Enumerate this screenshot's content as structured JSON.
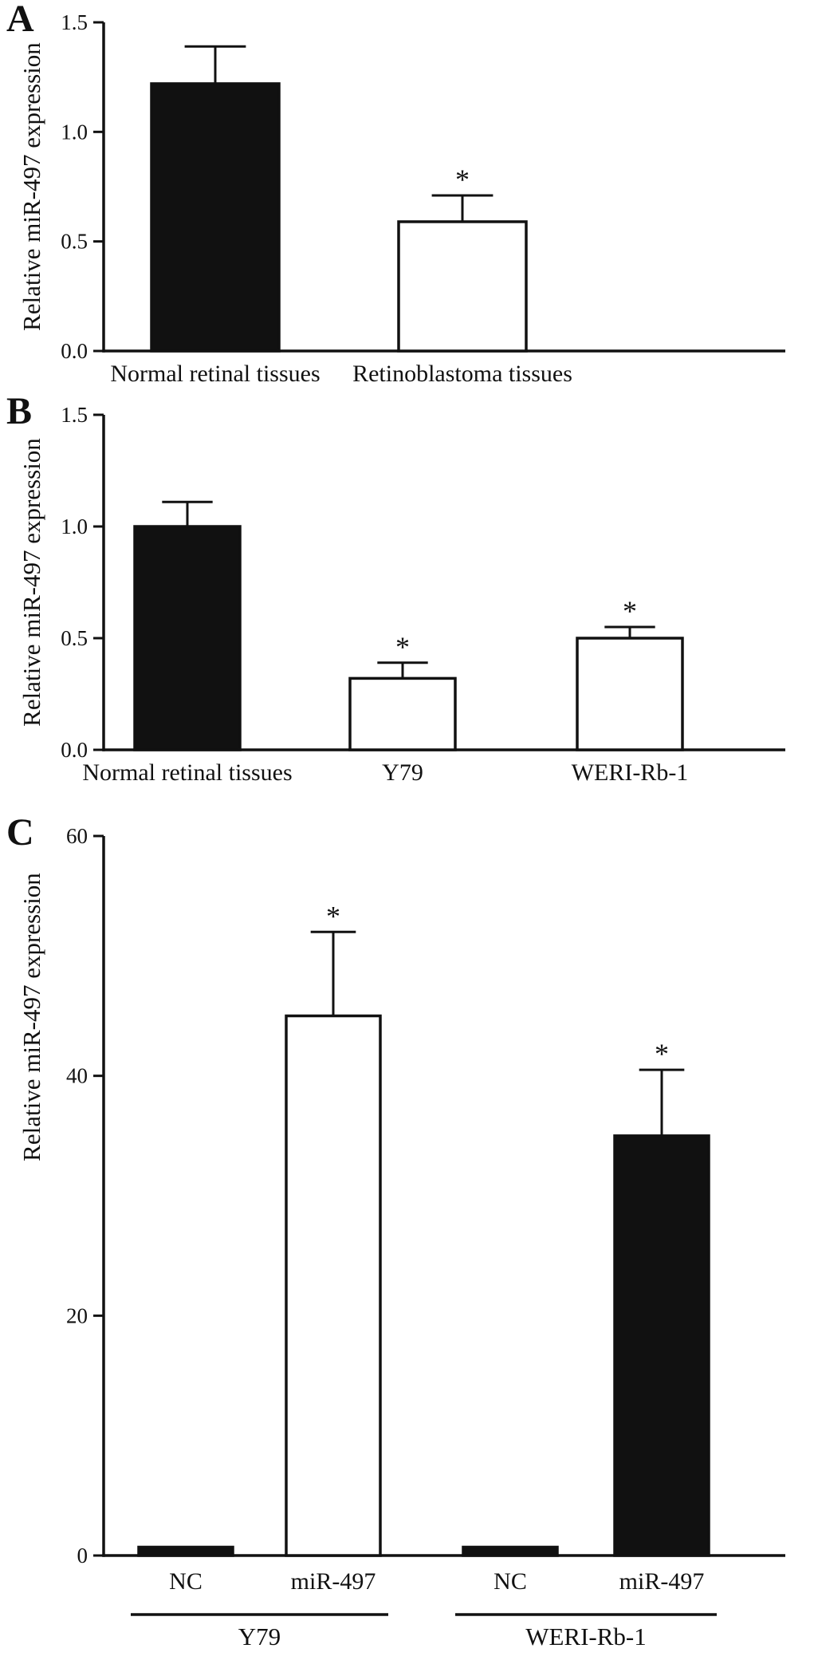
{
  "figure": {
    "background": "#ffffff",
    "ink": "#111111"
  },
  "chart_data": [
    {
      "type": "bar",
      "panel": "A",
      "title": "",
      "ylabel": "Relative miR-497 expression",
      "xlabel": "",
      "ylim": [
        0,
        1.5
      ],
      "yticks": [
        0,
        0.5,
        1.0,
        1.5
      ],
      "ytick_labels": [
        "0.0",
        "0.5",
        "1.0",
        "1.5"
      ],
      "grid": false,
      "legend": false,
      "categories": [
        "Normal retinal tissues",
        "Retinoblastoma tissues"
      ],
      "values": [
        1.22,
        0.59
      ],
      "errors": [
        0.17,
        0.12
      ],
      "bar_fills": [
        "black",
        "white"
      ],
      "annotations": [
        "",
        "*"
      ]
    },
    {
      "type": "bar",
      "panel": "B",
      "title": "",
      "ylabel": "Relative miR-497 expression",
      "xlabel": "",
      "ylim": [
        0,
        1.5
      ],
      "yticks": [
        0,
        0.5,
        1.0,
        1.5
      ],
      "ytick_labels": [
        "0.0",
        "0.5",
        "1.0",
        "1.5"
      ],
      "grid": false,
      "legend": false,
      "categories": [
        "Normal retinal tissues",
        "Y79",
        "WERI-Rb-1"
      ],
      "values": [
        1.0,
        0.32,
        0.5
      ],
      "errors": [
        0.11,
        0.07,
        0.05
      ],
      "bar_fills": [
        "black",
        "white",
        "white"
      ],
      "annotations": [
        "",
        "*",
        "*"
      ]
    },
    {
      "type": "bar",
      "panel": "C",
      "title": "",
      "ylabel": "Relative miR-497 expression",
      "xlabel": "",
      "ylim": [
        0,
        60
      ],
      "yticks": [
        0,
        20,
        40,
        60
      ],
      "ytick_labels": [
        "0",
        "20",
        "40",
        "60"
      ],
      "grid": false,
      "legend": false,
      "categories": [
        "NC",
        "miR-497",
        "NC",
        "miR-497"
      ],
      "values": [
        0.7,
        45,
        0.7,
        35
      ],
      "errors": [
        0,
        7,
        0,
        5.5
      ],
      "bar_fills": [
        "black",
        "white",
        "black",
        "black"
      ],
      "annotations": [
        "",
        "*",
        "",
        "*"
      ],
      "groups": [
        {
          "label": "Y79",
          "span": [
            0,
            1
          ]
        },
        {
          "label": "WERI-Rb-1",
          "span": [
            2,
            3
          ]
        }
      ]
    }
  ]
}
